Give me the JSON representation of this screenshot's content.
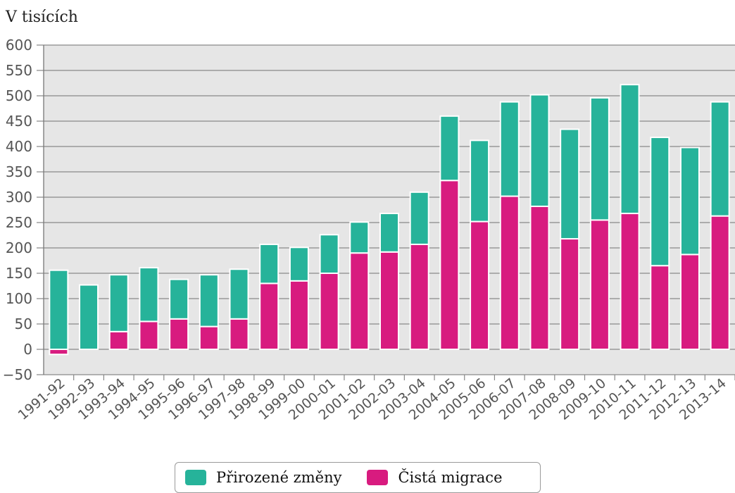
{
  "chart_data": {
    "type": "bar",
    "stacked": true,
    "ylabel": "V tisících",
    "ylim": [
      -50,
      600
    ],
    "yticks": [
      -50,
      0,
      50,
      100,
      150,
      200,
      250,
      300,
      350,
      400,
      450,
      500,
      550,
      600
    ],
    "categories": [
      "1991-92",
      "1992-93",
      "1993-94",
      "1994-95",
      "1995-96",
      "1996-97",
      "1997-98",
      "1998-99",
      "1999-00",
      "2000-01",
      "2001-02",
      "2002-03",
      "2003-04",
      "2004-05",
      "2005-06",
      "2006-07",
      "2007-08",
      "2008-09",
      "2009-10",
      "2010-11",
      "2011-12",
      "2012-13",
      "2013-14"
    ],
    "series": [
      {
        "name": "Čistá migrace",
        "color": "#d81b7f",
        "values": [
          -10,
          0,
          35,
          55,
          60,
          45,
          60,
          130,
          135,
          150,
          190,
          192,
          207,
          333,
          252,
          302,
          282,
          218,
          255,
          268,
          165,
          187,
          263
        ]
      },
      {
        "name": "Přirozené změny",
        "color": "#26b39a",
        "values": [
          156,
          127,
          112,
          106,
          78,
          102,
          98,
          77,
          66,
          76,
          61,
          76,
          103,
          127,
          160,
          186,
          220,
          216,
          241,
          254,
          253,
          211,
          225
        ]
      }
    ],
    "legend": [
      "Přirozené změny",
      "Čistá migrace"
    ],
    "legend_position": "bottom",
    "grid": true,
    "plot_background": "#e6e6e6"
  }
}
